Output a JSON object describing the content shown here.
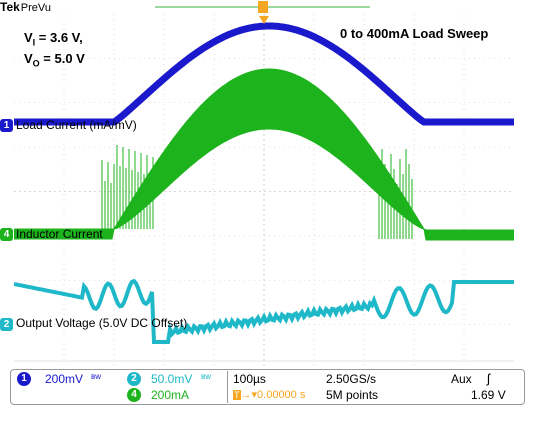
{
  "header": {
    "brand": "Tek",
    "mode": "PreVu"
  },
  "annotations": {
    "vi_label": "V",
    "vi_sub": "I",
    "vi_value": " = 3.6 V,",
    "vo_label": "V",
    "vo_sub": "O",
    "vo_value": " = 5.0 V",
    "sweep": "0 to 400mA Load Sweep"
  },
  "channels": [
    {
      "id": "1",
      "label": "Load Current (mA/mV)",
      "color": "#1a1acc"
    },
    {
      "id": "4",
      "label": "Inductor Current",
      "color": "#1db31d"
    },
    {
      "id": "2",
      "label": "Output Voltage (5.0V DC Offset)",
      "color": "#1fb8c9"
    }
  ],
  "status": {
    "ch1_num": "1",
    "ch1_scale": "200mV",
    "ch1_bw": "B_W",
    "ch2_num": "2",
    "ch2_scale": "50.0mV",
    "ch2_bw": "B_W",
    "ch4_num": "4",
    "ch4_scale": "200mA",
    "timebase": "100µs",
    "sample_rate": "2.50GS/s",
    "trigger_source": "Aux",
    "trigger_slope": "ʃ",
    "trigger_pos": "0.00000 s",
    "record_length": "5M points",
    "trigger_level": "1.69 V"
  },
  "colors": {
    "ch1": "#1a1acc",
    "ch2": "#1fb8c9",
    "ch4": "#1db31d",
    "trigger": "#f5a623"
  }
}
